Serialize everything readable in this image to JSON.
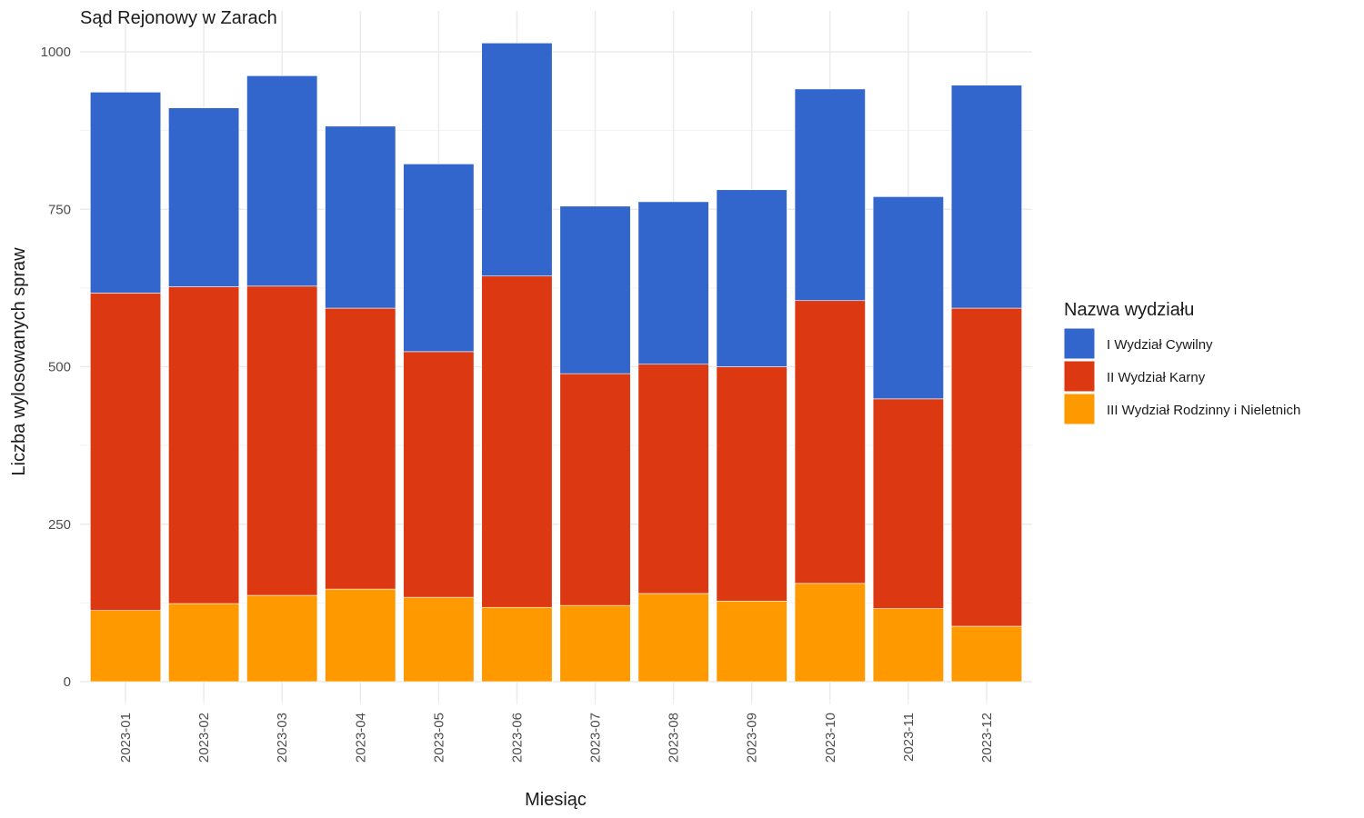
{
  "chart_data": {
    "type": "bar",
    "stacked": true,
    "title": "Sąd Rejonowy w Zarach",
    "xlabel": "Miesiąc",
    "ylabel": "Liczba wylosowanych spraw",
    "ylim": [
      0,
      1020
    ],
    "yticks": [
      0,
      250,
      500,
      750,
      1000
    ],
    "grid": true,
    "legend_title": "Nazwa wydziału",
    "legend_position": "right",
    "categories": [
      "2023-01",
      "2023-02",
      "2023-03",
      "2023-04",
      "2023-05",
      "2023-06",
      "2023-07",
      "2023-08",
      "2023-09",
      "2023-10",
      "2023-11",
      "2023-12"
    ],
    "series": [
      {
        "name": "I Wydział Cywilny",
        "color": "#3366CC",
        "values": [
          319,
          284,
          334,
          289,
          298,
          370,
          266,
          258,
          281,
          336,
          321,
          354
        ]
      },
      {
        "name": "II Wydział Karny",
        "color": "#DC3912",
        "values": [
          504,
          503,
          491,
          446,
          390,
          526,
          368,
          364,
          372,
          449,
          333,
          505
        ]
      },
      {
        "name": "III Wydział Rodzinny i Nieletnich",
        "color": "#FF9900",
        "values": [
          113,
          124,
          137,
          147,
          134,
          118,
          121,
          140,
          128,
          156,
          116,
          88
        ]
      }
    ]
  }
}
